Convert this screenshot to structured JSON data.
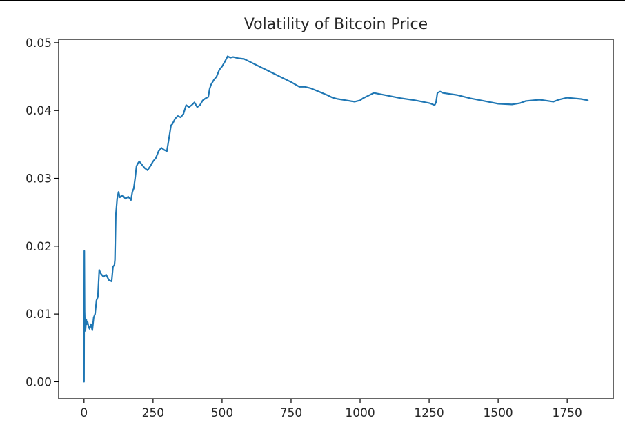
{
  "chart_data": {
    "type": "line",
    "title": "Volatility of Bitcoin Price",
    "xlabel": "",
    "ylabel": "",
    "xlim": [
      -92,
      1917
    ],
    "ylim": [
      -0.0025,
      0.0505
    ],
    "x_ticks": [
      0,
      250,
      500,
      750,
      1000,
      1250,
      1500,
      1750
    ],
    "x_tick_labels": [
      "0",
      "250",
      "500",
      "750",
      "1000",
      "1250",
      "1500",
      "1750"
    ],
    "y_ticks": [
      0.0,
      0.01,
      0.02,
      0.03,
      0.04,
      0.05
    ],
    "y_tick_labels": [
      "0.00",
      "0.01",
      "0.02",
      "0.03",
      "0.04",
      "0.05"
    ],
    "grid": false,
    "legend": "none",
    "line_color": "#1f77b4",
    "series": [
      {
        "x": [
          0,
          1,
          2,
          3,
          5,
          8,
          10,
          13,
          16,
          20,
          25,
          30,
          35,
          40,
          45,
          50,
          55,
          60,
          70,
          80,
          90,
          100,
          105,
          110,
          112,
          115,
          118,
          120,
          125,
          130,
          140,
          150,
          160,
          170,
          175,
          180,
          185,
          190,
          195,
          200,
          210,
          220,
          230,
          240,
          250,
          260,
          270,
          280,
          290,
          300,
          310,
          315,
          320,
          330,
          340,
          350,
          360,
          370,
          380,
          390,
          400,
          410,
          420,
          430,
          440,
          450,
          455,
          460,
          470,
          480,
          490,
          500,
          510,
          520,
          530,
          540,
          550,
          560,
          580,
          600,
          620,
          650,
          700,
          750,
          780,
          800,
          820,
          850,
          880,
          900,
          920,
          950,
          980,
          1000,
          1010,
          1030,
          1050,
          1100,
          1150,
          1200,
          1250,
          1270,
          1275,
          1280,
          1290,
          1300,
          1350,
          1400,
          1450,
          1500,
          1550,
          1580,
          1600,
          1650,
          1700,
          1720,
          1750,
          1800,
          1825
        ],
        "y": [
          0.0,
          0.0193,
          0.0105,
          0.009,
          0.0075,
          0.0092,
          0.0085,
          0.0088,
          0.0082,
          0.0078,
          0.0085,
          0.0076,
          0.0095,
          0.01,
          0.012,
          0.0125,
          0.0165,
          0.016,
          0.0155,
          0.0158,
          0.015,
          0.0148,
          0.017,
          0.0172,
          0.018,
          0.0245,
          0.026,
          0.027,
          0.028,
          0.0272,
          0.0275,
          0.027,
          0.0273,
          0.0268,
          0.028,
          0.0285,
          0.03,
          0.0318,
          0.0322,
          0.0325,
          0.032,
          0.0315,
          0.0312,
          0.0318,
          0.0325,
          0.033,
          0.034,
          0.0345,
          0.0342,
          0.034,
          0.0365,
          0.0378,
          0.038,
          0.0388,
          0.0392,
          0.039,
          0.0395,
          0.0408,
          0.0405,
          0.0408,
          0.0412,
          0.0405,
          0.0408,
          0.0415,
          0.0418,
          0.042,
          0.0432,
          0.0438,
          0.0445,
          0.045,
          0.046,
          0.0465,
          0.0472,
          0.048,
          0.0478,
          0.0479,
          0.0478,
          0.0477,
          0.0476,
          0.0472,
          0.0468,
          0.0462,
          0.0452,
          0.0442,
          0.0435,
          0.0435,
          0.0433,
          0.0428,
          0.0423,
          0.0419,
          0.0417,
          0.0415,
          0.0413,
          0.0415,
          0.0418,
          0.0422,
          0.0426,
          0.0422,
          0.0418,
          0.0415,
          0.0411,
          0.0408,
          0.0412,
          0.0426,
          0.0428,
          0.0426,
          0.0423,
          0.0418,
          0.0414,
          0.041,
          0.0409,
          0.0411,
          0.0414,
          0.0416,
          0.0413,
          0.0416,
          0.0419,
          0.0417,
          0.0415
        ]
      }
    ]
  }
}
